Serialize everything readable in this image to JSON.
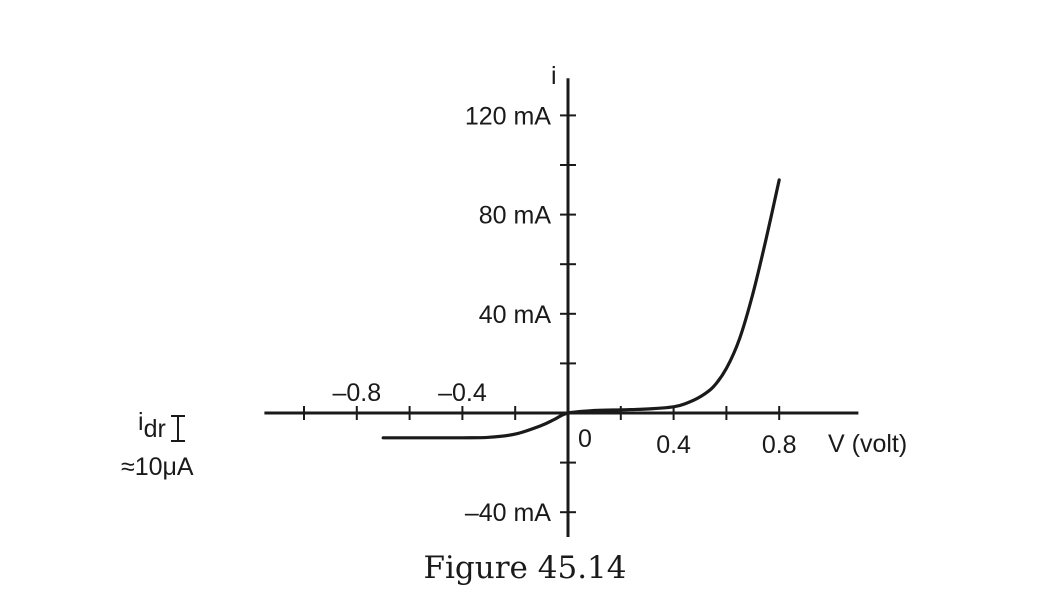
{
  "chart_data": {
    "type": "line",
    "caption": "Figure 45.14",
    "y_axis_symbol": "i",
    "x_axis_label": "V (volt)",
    "origin_label": "0",
    "x_tick_labels": [
      {
        "value": -0.8,
        "text": "–0.8"
      },
      {
        "value": -0.4,
        "text": "–0.4"
      },
      {
        "value": 0.4,
        "text": "0.4"
      },
      {
        "value": 0.8,
        "text": "0.8"
      }
    ],
    "x_minor_ticks": [
      -1.0,
      -0.6,
      -0.2,
      0.2,
      0.6
    ],
    "y_tick_labels": [
      {
        "value": 120,
        "text": "120 mA"
      },
      {
        "value": 80,
        "text": "80 mA"
      },
      {
        "value": 40,
        "text": "40 mA"
      },
      {
        "value": -40,
        "text": "–40 mA"
      }
    ],
    "y_minor_ticks": [
      100,
      60,
      20,
      -20
    ],
    "xlim": [
      -1.15,
      1.1
    ],
    "ylim": [
      -50,
      135
    ],
    "reverse_current_annotation": {
      "symbol": "i",
      "subscript": "dr",
      "value_text": "≈10μA"
    },
    "series": [
      {
        "x": [
          -0.7,
          -0.55,
          -0.4,
          -0.3,
          -0.2,
          -0.1,
          -0.05,
          0.0,
          0.1,
          0.2,
          0.3,
          0.4,
          0.45,
          0.5,
          0.55,
          0.6,
          0.65,
          0.7,
          0.75,
          0.8
        ],
        "y": [
          -10,
          -10,
          -10,
          -9.8,
          -8.5,
          -5,
          -2.5,
          0,
          1,
          1.3,
          1.6,
          2.5,
          4,
          6.5,
          10.5,
          18,
          30,
          48,
          70,
          94
        ]
      }
    ]
  }
}
